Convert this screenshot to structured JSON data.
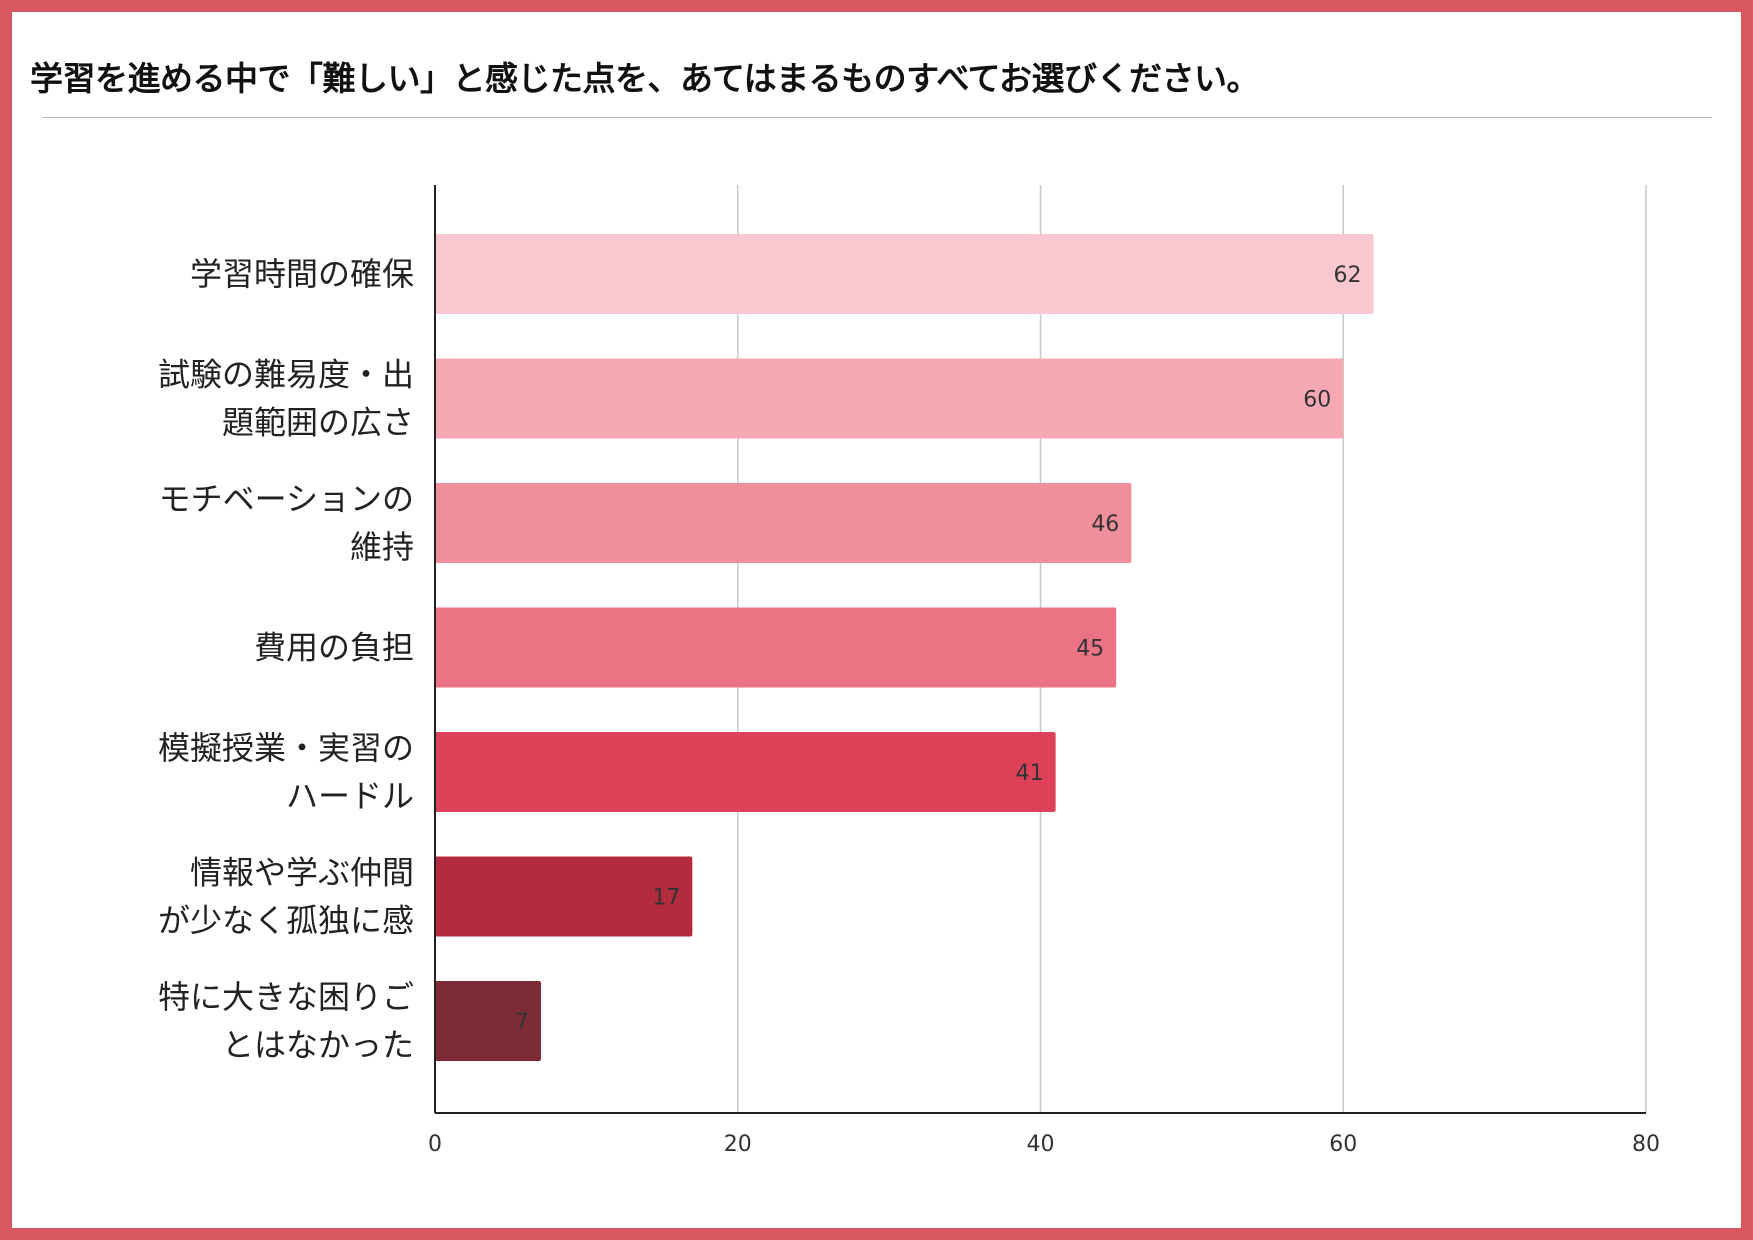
{
  "title": "学習を進める中で「難しい」と感じた点を、あてはまるものすべてお選びください。",
  "colors": {
    "frame": "#d9585f",
    "bars": [
      "#f9c7cf",
      "#f6a9b3",
      "#f08f9b",
      "#ec7384",
      "#dc4158",
      "#b32c3e",
      "#7c2b35"
    ],
    "grid": "#c8c8c8",
    "axis": "#222222"
  },
  "chart_data": {
    "type": "bar",
    "orientation": "horizontal",
    "categories": [
      [
        "学習時間の確保"
      ],
      [
        "試験の難易度・出",
        "題範囲の広さ"
      ],
      [
        "モチベーションの",
        "維持"
      ],
      [
        "費用の負担"
      ],
      [
        "模擬授業・実習の",
        "ハードル"
      ],
      [
        "情報や学ぶ仲間",
        "が少なく孤独に感"
      ],
      [
        "特に大きな困りご",
        "とはなかった"
      ]
    ],
    "values": [
      62,
      60,
      46,
      45,
      41,
      17,
      7
    ],
    "data_labels": [
      "62",
      "60",
      "46",
      "45",
      "41",
      "17",
      "7"
    ],
    "xlim": [
      0,
      80
    ],
    "xticks": [
      0,
      20,
      40,
      60,
      80
    ],
    "xtick_labels": [
      "0",
      "20",
      "40",
      "60",
      "80"
    ],
    "grid": "vertical",
    "legend": "none"
  }
}
